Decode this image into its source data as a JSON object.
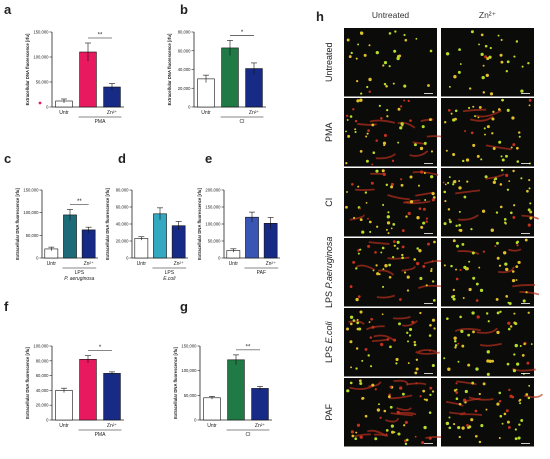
{
  "colors": {
    "untreated": "#ffffff",
    "pma": "#e8195f",
    "ci": "#1f7a45",
    "lps_pa": "#1d6b78",
    "lps_ec": "#33a8c0",
    "paf": "#3a56b5",
    "zn": "#172a86",
    "axis": "#222222",
    "micro_bg": "#0b0b09",
    "cell_green": "#b6dd2a",
    "cell_yellow": "#e1c02a",
    "cell_red": "#c2321e"
  },
  "microscopy": {
    "panel_letter": "h",
    "col_headers": [
      "Untreated",
      "Zn²⁺"
    ],
    "rows": [
      {
        "label": "Untreated",
        "italic": "",
        "red": 0.05,
        "density": 0.6
      },
      {
        "label": "PMA",
        "italic": "",
        "red": 0.55,
        "density": 0.8
      },
      {
        "label": "CI",
        "italic": "",
        "red": 0.55,
        "density": 0.95
      },
      {
        "label": "LPS ",
        "italic": "P.aeruginosa",
        "red": 0.6,
        "density": 0.85
      },
      {
        "label": "LPS ",
        "italic": "E.coli",
        "red": 0.55,
        "density": 0.85
      },
      {
        "label": "PAF",
        "italic": "",
        "red": 0.9,
        "density": 0.95
      }
    ]
  },
  "chart_data": [
    {
      "id": "a",
      "type": "bar",
      "ylabel": "Extracellular DNA fluorescence [rfu]",
      "ticks": [
        "0",
        "50,000",
        "100,000",
        "150,000"
      ],
      "ylim": [
        0,
        150000
      ],
      "categories": [
        "Untr",
        "",
        "Zn²⁺"
      ],
      "values": [
        12000,
        110000,
        40000
      ],
      "errors": [
        4000,
        18000,
        7000
      ],
      "fills": [
        "untreated",
        "pma",
        "zn"
      ],
      "group_label": "PMA",
      "sig": "**",
      "sig_pair": [
        1,
        2
      ],
      "outlier": 0
    },
    {
      "id": "b",
      "type": "bar",
      "ylabel": "Extracellular DNA fluorescence [rfu]",
      "ticks": [
        "0",
        "20,000",
        "40,000",
        "60,000",
        "80,000"
      ],
      "ylim": [
        0,
        80000
      ],
      "categories": [
        "Untr",
        "",
        "Zn²⁺"
      ],
      "values": [
        30000,
        63000,
        41000
      ],
      "errors": [
        4000,
        8000,
        6000
      ],
      "fills": [
        "untreated",
        "ci",
        "zn"
      ],
      "group_label": "CI",
      "sig": "*",
      "sig_pair": [
        1,
        2
      ]
    },
    {
      "id": "c",
      "type": "bar",
      "ylabel": "Extracellular DNA fluorescence [rfu]",
      "ticks": [
        "0",
        "50,000",
        "100,000",
        "150,000"
      ],
      "ylim": [
        0,
        150000
      ],
      "categories": [
        "Untr",
        "",
        "Zn²⁺"
      ],
      "values": [
        20000,
        95000,
        62000
      ],
      "errors": [
        4000,
        12000,
        6000
      ],
      "fills": [
        "untreated",
        "lps_pa",
        "zn"
      ],
      "group_label": "LPS",
      "group_sublabel": "P. aeruginosa",
      "sig": "**",
      "sig_pair": [
        1,
        2
      ]
    },
    {
      "id": "d",
      "type": "bar",
      "ylabel": "Extracellular DNA fluorescence [rfu]",
      "ticks": [
        "0",
        "20,000",
        "40,000",
        "60,000",
        "80,000"
      ],
      "ylim": [
        0,
        80000
      ],
      "categories": [
        "Untr",
        "",
        "Zn²⁺"
      ],
      "values": [
        23000,
        52000,
        38000
      ],
      "errors": [
        2000,
        7000,
        5000
      ],
      "fills": [
        "untreated",
        "lps_ec",
        "zn"
      ],
      "group_label": "LPS",
      "group_sublabel": "E.coli",
      "sig": "",
      "sig_pair": null
    },
    {
      "id": "e",
      "type": "bar",
      "ylabel": "Extracellular DNA fluorescence [rfu]",
      "ticks": [
        "0",
        "50,000",
        "100,000",
        "150,000",
        "200,000"
      ],
      "ylim": [
        0,
        200000
      ],
      "categories": [
        "Untr",
        "",
        "Zn²⁺"
      ],
      "values": [
        22000,
        120000,
        102000
      ],
      "errors": [
        5000,
        15000,
        17000
      ],
      "fills": [
        "untreated",
        "paf",
        "zn"
      ],
      "group_label": "PAF",
      "sig": "",
      "sig_pair": null
    },
    {
      "id": "f",
      "type": "bar",
      "ylabel": "Extracellular DNA fluorescence [rfu]",
      "ticks": [
        "0",
        "20,000",
        "40,000",
        "60,000",
        "80,000",
        "100,000"
      ],
      "ylim": [
        0,
        100000
      ],
      "categories": [
        "Untr",
        "",
        "Zn²⁺"
      ],
      "values": [
        40000,
        82000,
        63000
      ],
      "errors": [
        3000,
        5000,
        2000
      ],
      "fills": [
        "untreated",
        "pma",
        "zn"
      ],
      "group_label": "PMA",
      "sig": "*",
      "sig_pair": [
        1,
        2
      ]
    },
    {
      "id": "g",
      "type": "bar",
      "ylabel": "Extracellular DNA fluorescence [rfu]",
      "ticks": [
        "0",
        "50,000",
        "100,000",
        "150,000"
      ],
      "ylim": [
        0,
        150000
      ],
      "categories": [
        "Untr",
        "",
        "Zn²⁺"
      ],
      "values": [
        45000,
        122000,
        64000
      ],
      "errors": [
        3000,
        10000,
        4000
      ],
      "fills": [
        "untreated",
        "ci",
        "zn"
      ],
      "group_label": "CI",
      "sig": "**",
      "sig_pair": [
        1,
        2
      ]
    }
  ]
}
